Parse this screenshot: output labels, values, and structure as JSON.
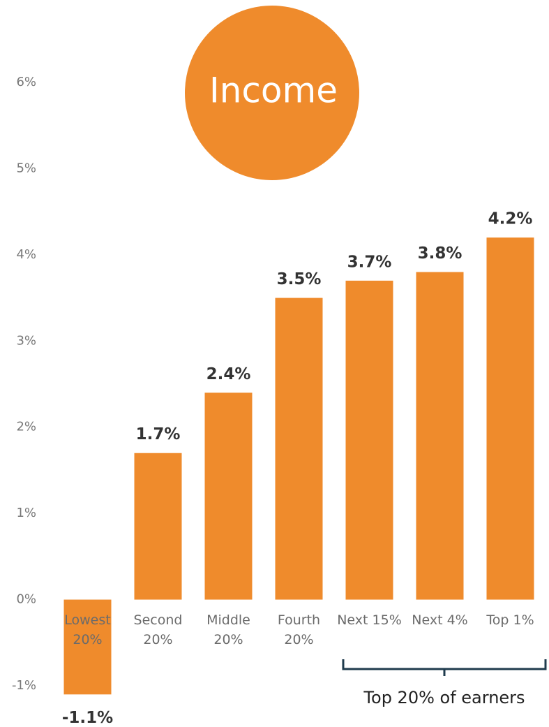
{
  "chart_data": {
    "type": "bar",
    "title": "Income",
    "categories": [
      "Lowest 20%",
      "Second 20%",
      "Middle 20%",
      "Fourth 20%",
      "Next 15%",
      "Next 4%",
      "Top 1%"
    ],
    "values": [
      -1.1,
      1.7,
      2.4,
      3.5,
      3.7,
      3.8,
      4.2
    ],
    "value_labels": [
      "-1.1%",
      "1.7%",
      "2.4%",
      "3.5%",
      "3.7%",
      "3.8%",
      "4.2%"
    ],
    "color": "#ef8b2c",
    "ylim": [
      -1,
      6
    ],
    "yticks": [
      {
        "value": -1,
        "label": "-1%"
      },
      {
        "value": 0,
        "label": "0%"
      },
      {
        "value": 1,
        "label": "1%"
      },
      {
        "value": 2,
        "label": "2%"
      },
      {
        "value": 3,
        "label": "3%"
      },
      {
        "value": 4,
        "label": "4%"
      },
      {
        "value": 5,
        "label": "5%"
      },
      {
        "value": 6,
        "label": "6%"
      }
    ],
    "annotation": "Top 20% of earners"
  }
}
